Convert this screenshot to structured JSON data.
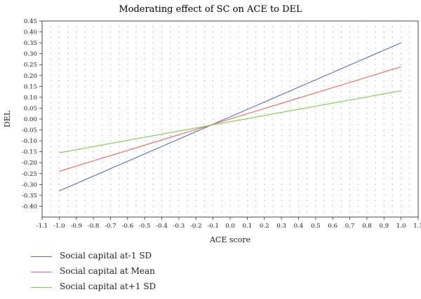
{
  "chart_data": {
    "type": "line",
    "title": "Moderating effect of SC on ACE to DEL",
    "xlabel": "ACE score",
    "ylabel": "DEL",
    "xlim": [
      -1.1,
      1.1
    ],
    "ylim": [
      -0.45,
      0.45
    ],
    "x_ticks": [
      "-1.1",
      "-1.0",
      "-0.9",
      "-0.8",
      "-0.7",
      "-0.6",
      "-0.5",
      "-0.4",
      "-0.3",
      "-0.2",
      "-0.1",
      "0.0",
      "0.1",
      "0.2",
      "0.3",
      "0.4",
      "0.5",
      "0.6",
      "0.7",
      "0.8",
      "0.9",
      "1.0",
      "1.1"
    ],
    "y_ticks": [
      "0.45",
      "0.40",
      "0.35",
      "0.30",
      "0.25",
      "0.20",
      "0.15",
      "0.10",
      "0.05",
      "0.00",
      "-0.05",
      "-0.10",
      "-0.15",
      "-0.20",
      "-0.25",
      "-0.30",
      "-0.35",
      "-0.40"
    ],
    "grid": "dotted",
    "legend_position": "bottom-left",
    "series": [
      {
        "name": "Social capital at-1 SD",
        "color": "#5b6bb3",
        "x": [
          -1.0,
          1.0
        ],
        "y": [
          -0.33,
          0.35
        ]
      },
      {
        "name": "Social capital at Mean",
        "color": "#e8675e",
        "x": [
          -1.0,
          1.0
        ],
        "y": [
          -0.24,
          0.24
        ]
      },
      {
        "name": "Social capital at+1 SD",
        "color": "#7cc94e",
        "x": [
          -1.0,
          1.0
        ],
        "y": [
          -0.155,
          0.13
        ]
      }
    ]
  }
}
